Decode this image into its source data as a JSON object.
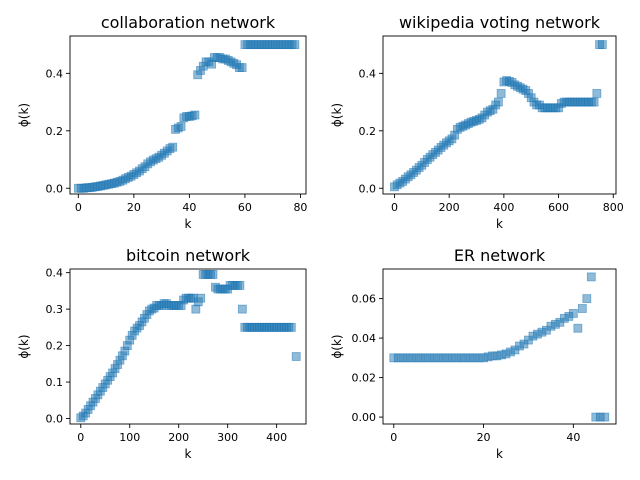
{
  "figure": {
    "marker_color": "#1f77b4",
    "marker_shape": "square-icon"
  },
  "chart_data": [
    {
      "type": "scatter",
      "title": "collaboration network",
      "xlabel": "k",
      "ylabel": "ϕ(k)",
      "xlim": [
        -3,
        82
      ],
      "ylim": [
        -0.02,
        0.53
      ],
      "xticks": [
        0,
        20,
        40,
        60,
        80
      ],
      "yticks": [
        0.0,
        0.2,
        0.4
      ],
      "ytick_labels": [
        "0.0",
        "0.2",
        "0.4"
      ],
      "series": [
        {
          "x": [
            0,
            1,
            2,
            3,
            4,
            5,
            6,
            7,
            8,
            9,
            10,
            11,
            12,
            13,
            14,
            15,
            16,
            17,
            18,
            19,
            20,
            21,
            22,
            23,
            24,
            25,
            26,
            27,
            28,
            29,
            30,
            31,
            32,
            33,
            34,
            35,
            36,
            37,
            38,
            39,
            40,
            41,
            42,
            43,
            44,
            45,
            46,
            47,
            48,
            49,
            50,
            51,
            52,
            53,
            54,
            55,
            56,
            57,
            58,
            59,
            60,
            61,
            62,
            63,
            64,
            65,
            66,
            67,
            68,
            69,
            70,
            71,
            72,
            73,
            74,
            75,
            76,
            77,
            78
          ],
          "y": [
            0.0,
            0.0,
            0.0,
            0.002,
            0.002,
            0.003,
            0.005,
            0.006,
            0.008,
            0.01,
            0.012,
            0.014,
            0.016,
            0.018,
            0.021,
            0.024,
            0.028,
            0.033,
            0.038,
            0.042,
            0.048,
            0.054,
            0.06,
            0.068,
            0.075,
            0.085,
            0.092,
            0.098,
            0.103,
            0.108,
            0.115,
            0.122,
            0.13,
            0.138,
            0.143,
            0.205,
            0.21,
            0.215,
            0.245,
            0.25,
            0.25,
            0.252,
            0.255,
            0.395,
            0.41,
            0.425,
            0.44,
            0.44,
            0.432,
            0.455,
            0.455,
            0.455,
            0.45,
            0.45,
            0.445,
            0.44,
            0.435,
            0.43,
            0.42,
            0.42,
            0.5,
            0.5,
            0.5,
            0.5,
            0.5,
            0.5,
            0.5,
            0.5,
            0.5,
            0.5,
            0.5,
            0.5,
            0.5,
            0.5,
            0.5,
            0.5,
            0.5,
            0.5,
            0.5
          ]
        }
      ]
    },
    {
      "type": "scatter",
      "title": "wikipedia voting network",
      "xlabel": "k",
      "ylabel": "ϕ(k)",
      "xlim": [
        -42,
        810
      ],
      "ylim": [
        -0.02,
        0.53
      ],
      "xticks": [
        0,
        200,
        400,
        600,
        800
      ],
      "yticks": [
        0.0,
        0.2,
        0.4
      ],
      "ytick_labels": [
        "0.0",
        "0.2",
        "0.4"
      ],
      "series": [
        {
          "x": [
            0,
            10,
            20,
            30,
            40,
            50,
            60,
            70,
            80,
            90,
            100,
            110,
            120,
            130,
            140,
            150,
            160,
            170,
            180,
            190,
            200,
            210,
            220,
            230,
            240,
            250,
            260,
            270,
            280,
            290,
            300,
            310,
            320,
            330,
            340,
            350,
            360,
            370,
            380,
            390,
            400,
            410,
            420,
            430,
            440,
            450,
            460,
            470,
            480,
            490,
            500,
            510,
            520,
            530,
            540,
            550,
            560,
            570,
            580,
            590,
            600,
            610,
            620,
            630,
            640,
            650,
            660,
            670,
            680,
            690,
            700,
            710,
            720,
            730,
            740,
            750,
            760
          ],
          "y": [
            0.005,
            0.012,
            0.018,
            0.024,
            0.032,
            0.04,
            0.047,
            0.055,
            0.063,
            0.072,
            0.08,
            0.09,
            0.1,
            0.108,
            0.117,
            0.125,
            0.133,
            0.142,
            0.15,
            0.158,
            0.165,
            0.172,
            0.185,
            0.205,
            0.212,
            0.216,
            0.22,
            0.225,
            0.23,
            0.233,
            0.236,
            0.24,
            0.245,
            0.255,
            0.265,
            0.27,
            0.275,
            0.29,
            0.3,
            0.33,
            0.37,
            0.375,
            0.372,
            0.368,
            0.36,
            0.355,
            0.35,
            0.345,
            0.34,
            0.33,
            0.315,
            0.3,
            0.29,
            0.29,
            0.28,
            0.28,
            0.28,
            0.28,
            0.28,
            0.28,
            0.28,
            0.295,
            0.3,
            0.3,
            0.3,
            0.3,
            0.3,
            0.3,
            0.3,
            0.3,
            0.3,
            0.3,
            0.3,
            0.3,
            0.33,
            0.5,
            0.5
          ]
        }
      ]
    },
    {
      "type": "scatter",
      "title": "bitcoin network",
      "xlabel": "k",
      "ylabel": "ϕ(k)",
      "xlim": [
        -22,
        460
      ],
      "ylim": [
        -0.015,
        0.41
      ],
      "xticks": [
        0,
        100,
        200,
        300,
        400
      ],
      "yticks": [
        0.0,
        0.1,
        0.2,
        0.3,
        0.4
      ],
      "ytick_labels": [
        "0.0",
        "0.1",
        "0.2",
        "0.3",
        "0.4"
      ],
      "series": [
        {
          "x": [
            0,
            5,
            10,
            15,
            20,
            25,
            30,
            35,
            40,
            45,
            50,
            55,
            60,
            65,
            70,
            75,
            80,
            85,
            90,
            95,
            100,
            105,
            110,
            115,
            120,
            125,
            130,
            135,
            140,
            145,
            150,
            155,
            160,
            165,
            170,
            175,
            180,
            185,
            190,
            195,
            200,
            205,
            210,
            215,
            220,
            225,
            230,
            235,
            240,
            245,
            250,
            255,
            260,
            265,
            270,
            275,
            280,
            285,
            290,
            295,
            300,
            305,
            310,
            315,
            320,
            325,
            330,
            335,
            340,
            345,
            350,
            355,
            360,
            365,
            370,
            375,
            380,
            385,
            390,
            395,
            400,
            405,
            410,
            415,
            420,
            425,
            430,
            440
          ],
          "y": [
            0.002,
            0.007,
            0.015,
            0.025,
            0.035,
            0.045,
            0.055,
            0.065,
            0.075,
            0.085,
            0.095,
            0.105,
            0.115,
            0.125,
            0.137,
            0.148,
            0.16,
            0.172,
            0.185,
            0.2,
            0.215,
            0.228,
            0.24,
            0.248,
            0.255,
            0.265,
            0.275,
            0.285,
            0.295,
            0.3,
            0.303,
            0.31,
            0.31,
            0.31,
            0.315,
            0.315,
            0.31,
            0.31,
            0.31,
            0.31,
            0.31,
            0.31,
            0.325,
            0.33,
            0.33,
            0.33,
            0.33,
            0.3,
            0.32,
            0.33,
            0.395,
            0.395,
            0.395,
            0.395,
            0.395,
            0.36,
            0.355,
            0.355,
            0.355,
            0.355,
            0.355,
            0.365,
            0.365,
            0.365,
            0.365,
            0.365,
            0.3,
            0.25,
            0.25,
            0.25,
            0.25,
            0.25,
            0.25,
            0.25,
            0.25,
            0.25,
            0.25,
            0.25,
            0.25,
            0.25,
            0.25,
            0.25,
            0.25,
            0.25,
            0.25,
            0.25,
            0.25,
            0.17
          ]
        }
      ]
    },
    {
      "type": "scatter",
      "title": "ER network",
      "xlabel": "k",
      "ylabel": "ϕ(k)",
      "xlim": [
        -2.4,
        49.5
      ],
      "ylim": [
        -0.0035,
        0.075
      ],
      "xticks": [
        0,
        20,
        40
      ],
      "yticks": [
        0.0,
        0.02,
        0.04,
        0.06
      ],
      "ytick_labels": [
        "0.00",
        "0.02",
        "0.04",
        "0.06"
      ],
      "series": [
        {
          "x": [
            0,
            1,
            2,
            3,
            4,
            5,
            6,
            7,
            8,
            9,
            10,
            11,
            12,
            13,
            14,
            15,
            16,
            17,
            18,
            19,
            20,
            21,
            22,
            23,
            24,
            25,
            26,
            27,
            28,
            29,
            30,
            31,
            32,
            33,
            34,
            35,
            36,
            37,
            38,
            39,
            40,
            41,
            42,
            43,
            44,
            45,
            46,
            47
          ],
          "y": [
            0.03,
            0.03,
            0.03,
            0.03,
            0.03,
            0.03,
            0.03,
            0.03,
            0.03,
            0.03,
            0.03,
            0.03,
            0.03,
            0.03,
            0.03,
            0.03,
            0.03,
            0.03,
            0.03,
            0.03,
            0.03,
            0.0305,
            0.031,
            0.031,
            0.0315,
            0.032,
            0.033,
            0.034,
            0.036,
            0.037,
            0.039,
            0.041,
            0.042,
            0.043,
            0.044,
            0.046,
            0.047,
            0.048,
            0.05,
            0.051,
            0.0525,
            0.045,
            0.055,
            0.06,
            0.071,
            0.0,
            0.0,
            0.0
          ]
        }
      ]
    }
  ]
}
